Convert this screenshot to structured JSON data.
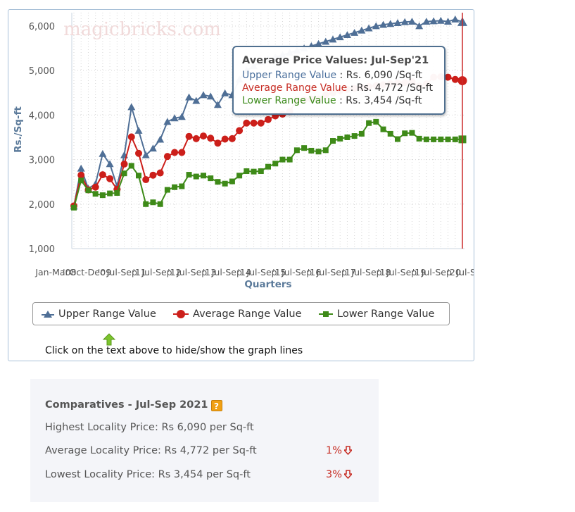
{
  "chart_data": {
    "type": "line",
    "watermark": "magicbricks.com",
    "ylabel": "Rs./Sq-ft",
    "xlabel": "Quarters",
    "ylim": [
      1000,
      6300
    ],
    "yticks": [
      1000,
      2000,
      3000,
      4000,
      5000,
      6000
    ],
    "ytick_labels": [
      "1,000",
      "2,000",
      "3,000",
      "4,000",
      "5,000",
      "6,000"
    ],
    "xtick_labels": [
      "Jan-Mar",
      "'08",
      "Oct-Dec",
      "'09",
      "Jul-Sep",
      "'11",
      "Jul-Sep",
      "'12",
      "Jul-Sep",
      "'13",
      "Jul-Sep",
      "'14",
      "Jul-Sep",
      "'15",
      "Jul-Sep",
      "'16",
      "Jul-Sep",
      "'17",
      "Jul-Sep",
      "'18",
      "Jul-Sep",
      "'19",
      "Jul-Sep",
      "'20",
      "Jul-Sep"
    ],
    "grid": true,
    "legend_position": "bottom",
    "series": [
      {
        "name": "Upper Range Value",
        "color": "#4f6f96",
        "marker": "triangle",
        "values": [
          1950,
          2800,
          2350,
          2450,
          3130,
          2900,
          2400,
          3100,
          4180,
          3650,
          3100,
          3250,
          3450,
          3850,
          3930,
          3960,
          4400,
          4320,
          4450,
          4420,
          4230,
          4490,
          4450,
          4800,
          5000,
          5100,
          5200,
          5250,
          5300,
          5350,
          5400,
          5450,
          5500,
          5550,
          5600,
          5650,
          5700,
          5750,
          5800,
          5850,
          5900,
          5950,
          6000,
          6030,
          6050,
          6070,
          6090,
          6100,
          6000,
          6100,
          6110,
          6120,
          6100,
          6150,
          6090
        ]
      },
      {
        "name": "Average Range Value",
        "color": "#cc1f1a",
        "marker": "circle",
        "values": [
          1960,
          2650,
          2320,
          2380,
          2660,
          2570,
          2330,
          2900,
          3510,
          3140,
          2550,
          2650,
          2700,
          3070,
          3160,
          3160,
          3520,
          3470,
          3530,
          3480,
          3370,
          3460,
          3470,
          3650,
          3820,
          3820,
          3820,
          3900,
          3980,
          4020,
          4080,
          4340,
          4340,
          4360,
          4360,
          4450,
          4500,
          4550,
          4580,
          4600,
          4620,
          4640,
          4660,
          4680,
          4700,
          4720,
          4730,
          4750,
          4650,
          4700,
          4850,
          4860,
          4850,
          4800,
          4772
        ]
      },
      {
        "name": "Lower Range Value",
        "color": "#3e8a18",
        "marker": "square",
        "values": [
          1920,
          2530,
          2310,
          2230,
          2200,
          2240,
          2250,
          2690,
          2860,
          2640,
          2000,
          2040,
          2000,
          2320,
          2380,
          2400,
          2660,
          2620,
          2640,
          2580,
          2500,
          2460,
          2510,
          2640,
          2740,
          2730,
          2740,
          2840,
          2910,
          3000,
          3000,
          3210,
          3260,
          3200,
          3180,
          3210,
          3420,
          3470,
          3500,
          3530,
          3580,
          3820,
          3850,
          3680,
          3580,
          3460,
          3590,
          3600,
          3470,
          3454,
          3454,
          3454,
          3454,
          3454,
          3454
        ]
      }
    ]
  },
  "tooltip": {
    "title": "Average Price Values: Jul-Sep'21",
    "upper_label": "Upper Range Value",
    "upper_value": "Rs. 6,090 /Sq-ft",
    "avg_label": "Average Range Value",
    "avg_value": "Rs. 4,772 /Sq-ft",
    "low_label": "Lower Range Value",
    "low_value": "Rs. 3,454 /Sq-ft"
  },
  "legend": {
    "upper": "Upper Range Value",
    "average": "Average Range Value",
    "lower": "Lower Range Value"
  },
  "hint": "Click on the text above to hide/show the graph lines",
  "comparatives": {
    "title": "Comparatives - Jul-Sep 2021",
    "help": "?",
    "highest": "Highest Locality Price: Rs 6,090 per Sq-ft",
    "average": "Average Locality Price: Rs 4,772 per Sq-ft",
    "average_change": "1%",
    "lowest": "Lowest Locality Price: Rs 3,454 per Sq-ft",
    "lowest_change": "3%"
  },
  "colors": {
    "upper": "#4f6f96",
    "average": "#cc1f1a",
    "lower": "#3e8a18",
    "down_arrow": "#c62b22",
    "help_icon": "#f0a014"
  }
}
